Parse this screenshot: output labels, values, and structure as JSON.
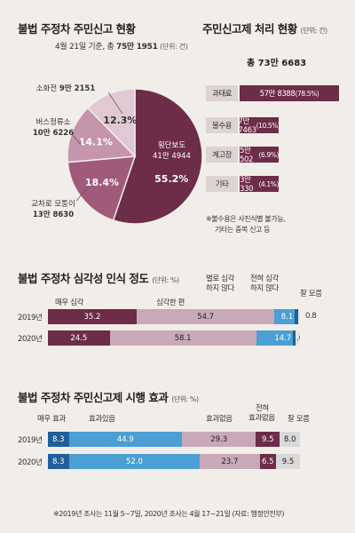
{
  "section1": {
    "title": "불법 주정차 주민신고 현황",
    "subtitle_prefix": "4월 21일 기준, 총 ",
    "subtitle_total": "75만 1951",
    "subtitle_unit": "(단위: 건)"
  },
  "section2": {
    "title": "주민신고제 처리 현황",
    "unit": "(단위: 건)",
    "total": "총 73만 6683",
    "note_line1": "※불수용은 사진식별 불가능,",
    "note_line2": "기타는 중복 신고 등"
  },
  "section3": {
    "title": "불법 주정차 심각성 인식 정도",
    "unit": "(단위: %)"
  },
  "section4": {
    "title": "불법 주정차 주민신고제 시행 효과",
    "unit": "(단위: %)"
  },
  "footer": "※2019년 조사는 11월 5~7일, 2020년 조사는 4월 17~21일 (자료: 행정안전부)",
  "chart_data": [
    {
      "type": "pie",
      "title": "불법 주정차 주민신고 현황",
      "slices": [
        {
          "name": "횡단보도",
          "count": "41만 4944",
          "value": 55.2,
          "color": "#6d2c47"
        },
        {
          "name": "교차로 모퉁이",
          "count": "13만 8630",
          "value": 18.4,
          "color": "#a05a7a"
        },
        {
          "name": "버스정류소",
          "count": "10만 6226",
          "value": 14.1,
          "color": "#c595ab"
        },
        {
          "name": "소화전",
          "count": "9만 2151",
          "value": 12.3,
          "color": "#e1c9d3"
        }
      ]
    },
    {
      "type": "bar",
      "title": "주민신고제 처리 현황",
      "categories": [
        "과태료",
        "불수용",
        "계고장",
        "기타"
      ],
      "values": [
        578388,
        77463,
        50502,
        30330
      ],
      "value_labels": [
        "57만 8388",
        "7만 7463",
        "5만 502",
        "3만 330"
      ],
      "percent_labels": [
        "(78.5%)",
        "(10.5%)",
        "(6.9%)",
        "(4.1%)"
      ]
    },
    {
      "type": "bar",
      "stacked": true,
      "title": "불법 주정차 심각성 인식 정도",
      "categories": [
        "2019년",
        "2020년"
      ],
      "series": [
        {
          "name": "매우 심각",
          "values": [
            35.2,
            24.5
          ],
          "color": "#6d2c47"
        },
        {
          "name": "심각한 편",
          "values": [
            54.7,
            58.1
          ],
          "color": "#c9a9b8"
        },
        {
          "name": "별로 심각하지 않다",
          "values": [
            8.1,
            14.7
          ],
          "color": "#4b9fd4"
        },
        {
          "name": "전혀 심각하지 않다",
          "values": [
            1.2,
            1.0
          ],
          "color": "#1f5f9b"
        },
        {
          "name": "잘 모름",
          "values": [
            0.8,
            1.6
          ],
          "color": "#e5e5e5"
        }
      ],
      "label_lines": {
        "별로 심각하지 않다": [
          "별로 심각",
          "하지 않다"
        ],
        "전혀 심각하지 않다": [
          "전혀 심각",
          "하지 않다"
        ]
      }
    },
    {
      "type": "bar",
      "stacked": true,
      "title": "불법 주정차 주민신고제 시행 효과",
      "categories": [
        "2019년",
        "2020년"
      ],
      "series": [
        {
          "name": "매우 효과",
          "values": [
            8.3,
            8.3
          ],
          "color": "#1f5f9b"
        },
        {
          "name": "효과있음",
          "values": [
            44.9,
            52.0
          ],
          "color": "#4b9fd4"
        },
        {
          "name": "효과없음",
          "values": [
            29.3,
            23.7
          ],
          "color": "#c9a9b8"
        },
        {
          "name": "전혀 효과없음",
          "values": [
            9.5,
            6.5
          ],
          "color": "#6d2c47"
        },
        {
          "name": "잘 모름",
          "values": [
            8.0,
            9.5
          ],
          "color": "#d9d9d9"
        }
      ],
      "label_lines": {
        "전혀 효과없음": [
          "전혀",
          "효과없음"
        ]
      }
    }
  ]
}
